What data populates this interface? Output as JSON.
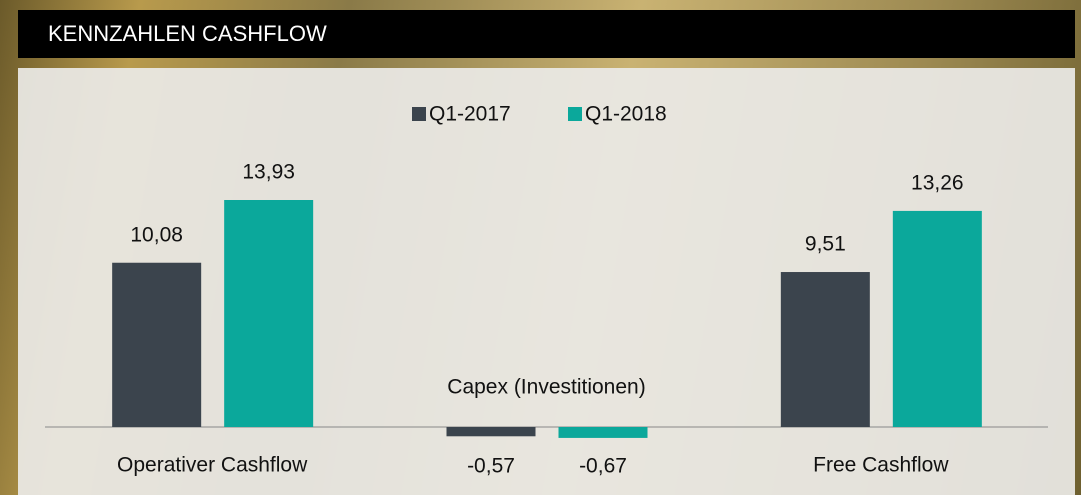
{
  "header": {
    "title": "KENNZAHLEN CASHFLOW"
  },
  "chart_data": {
    "type": "bar",
    "categories": [
      "Operativer Cashflow",
      "Capex (Investitionen)",
      "Free Cashflow"
    ],
    "series": [
      {
        "name": "Q1-2017",
        "color": "#3b444d",
        "values": [
          10.08,
          -0.57,
          9.51
        ],
        "value_labels": [
          "10,08",
          "-0,57",
          "9,51"
        ]
      },
      {
        "name": "Q1-2018",
        "color": "#0ba89b",
        "values": [
          13.93,
          -0.67,
          13.26
        ],
        "value_labels": [
          "13,93",
          "-0,67",
          "13,26"
        ]
      }
    ],
    "legend": "top"
  }
}
